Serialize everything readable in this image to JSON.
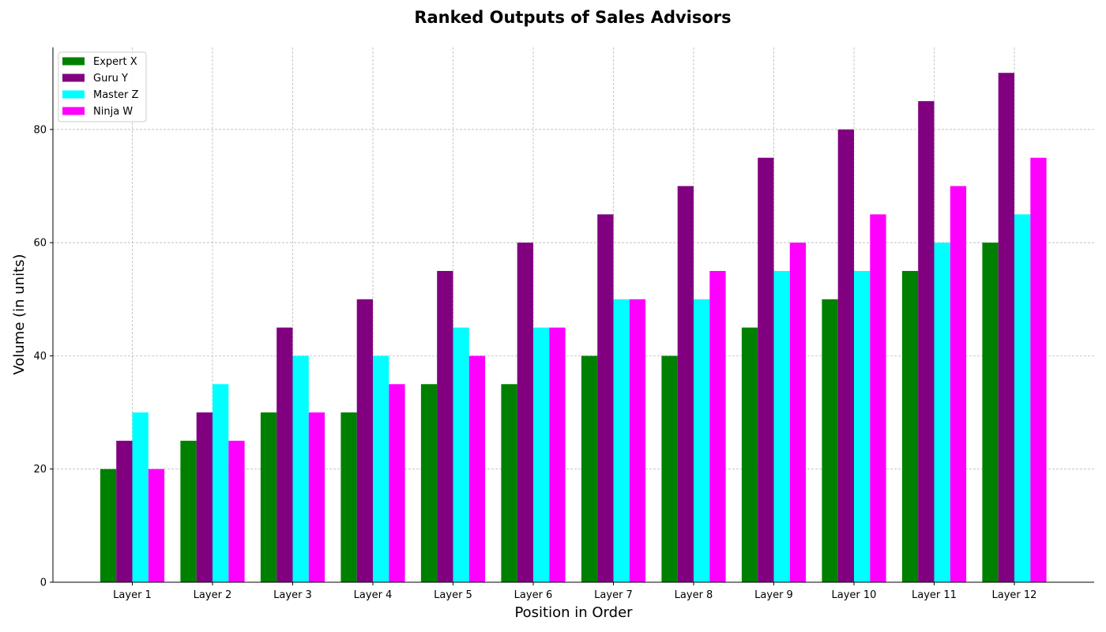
{
  "chart_data": {
    "type": "bar",
    "title": "Ranked Outputs of Sales Advisors",
    "xlabel": "Position in Order",
    "ylabel": "Volume (in units)",
    "categories": [
      "Layer 1",
      "Layer 2",
      "Layer 3",
      "Layer 4",
      "Layer 5",
      "Layer 6",
      "Layer 7",
      "Layer 8",
      "Layer 9",
      "Layer 10",
      "Layer 11",
      "Layer 12"
    ],
    "series": [
      {
        "name": "Expert X",
        "color": "#008000",
        "values": [
          20,
          25,
          30,
          30,
          35,
          35,
          40,
          40,
          45,
          50,
          55,
          60
        ]
      },
      {
        "name": "Guru Y",
        "color": "#800080",
        "values": [
          25,
          30,
          45,
          50,
          55,
          60,
          65,
          70,
          75,
          80,
          85,
          90
        ]
      },
      {
        "name": "Master Z",
        "color": "#00ffff",
        "values": [
          30,
          35,
          40,
          40,
          45,
          45,
          50,
          50,
          55,
          55,
          60,
          65
        ]
      },
      {
        "name": "Ninja W",
        "color": "#ff00ff",
        "values": [
          20,
          25,
          30,
          35,
          40,
          45,
          50,
          55,
          60,
          65,
          70,
          75
        ]
      }
    ],
    "ylim": [
      0,
      94.5
    ],
    "yticks": [
      0,
      20,
      40,
      60,
      80
    ],
    "grid": true,
    "legend_position": "top-left"
  }
}
